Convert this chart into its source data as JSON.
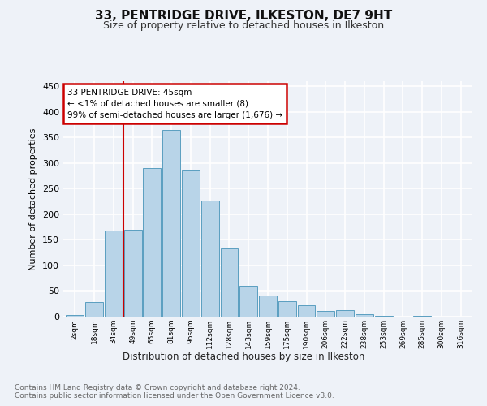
{
  "title1": "33, PENTRIDGE DRIVE, ILKESTON, DE7 9HT",
  "title2": "Size of property relative to detached houses in Ilkeston",
  "xlabel": "Distribution of detached houses by size in Ilkeston",
  "ylabel": "Number of detached properties",
  "bin_labels": [
    "2sqm",
    "18sqm",
    "34sqm",
    "49sqm",
    "65sqm",
    "81sqm",
    "96sqm",
    "112sqm",
    "128sqm",
    "143sqm",
    "159sqm",
    "175sqm",
    "190sqm",
    "206sqm",
    "222sqm",
    "238sqm",
    "253sqm",
    "269sqm",
    "285sqm",
    "300sqm",
    "316sqm"
  ],
  "bar_heights": [
    3,
    28,
    168,
    169,
    291,
    365,
    287,
    227,
    134,
    60,
    41,
    30,
    22,
    11,
    12,
    5,
    1,
    0,
    1,
    0,
    0
  ],
  "bar_color": "#b8d4e8",
  "bar_edge_color": "#5a9ec0",
  "subject_line_color": "#cc0000",
  "annotation_text": "33 PENTRIDGE DRIVE: 45sqm\n← <1% of detached houses are smaller (8)\n99% of semi-detached houses are larger (1,676) →",
  "annotation_box_color": "#ffffff",
  "annotation_box_edge_color": "#cc0000",
  "ylim": [
    0,
    460
  ],
  "yticks": [
    0,
    50,
    100,
    150,
    200,
    250,
    300,
    350,
    400,
    450
  ],
  "footer_text": "Contains HM Land Registry data © Crown copyright and database right 2024.\nContains public sector information licensed under the Open Government Licence v3.0.",
  "bg_color": "#eef2f8",
  "plot_bg_color": "#eef2f8",
  "grid_color": "#ffffff"
}
